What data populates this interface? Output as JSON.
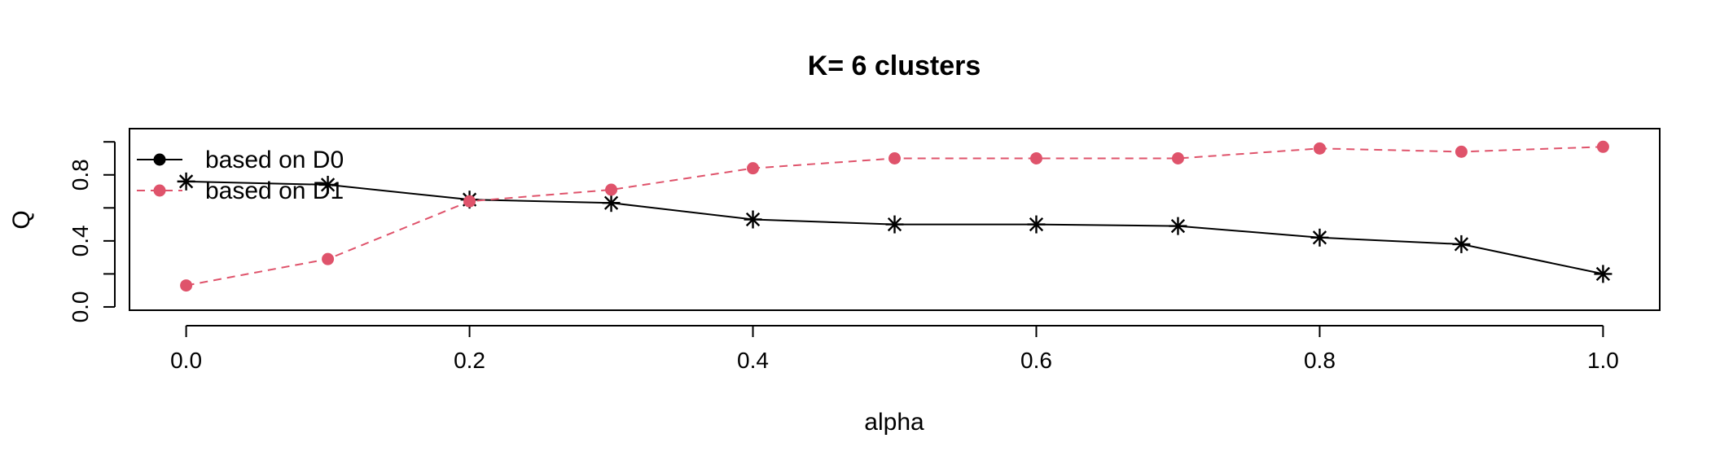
{
  "chart_data": {
    "type": "line",
    "title": "K= 6 clusters",
    "xlabel": "alpha",
    "ylabel": "Q",
    "x": [
      0.0,
      0.1,
      0.2,
      0.3,
      0.4,
      0.5,
      0.6,
      0.7,
      0.8,
      0.9,
      1.0
    ],
    "xlim": [
      -0.04,
      1.04
    ],
    "ylim": [
      -0.02,
      1.08
    ],
    "x_ticks": [
      "0.0",
      "0.2",
      "0.4",
      "0.6",
      "0.8",
      "1.0"
    ],
    "y_ticks": [
      "0.0",
      "0.4",
      "0.8"
    ],
    "grid": false,
    "legend_position": "top-left",
    "series": [
      {
        "name": "based on D0",
        "color": "#000000",
        "line_style": "solid",
        "marker": "asterisk",
        "values": [
          0.76,
          0.74,
          0.65,
          0.63,
          0.53,
          0.5,
          0.5,
          0.49,
          0.42,
          0.38,
          0.2
        ]
      },
      {
        "name": "based on D1",
        "color": "#DF536B",
        "line_style": "dashed",
        "marker": "circle",
        "values": [
          0.13,
          0.29,
          0.64,
          0.71,
          0.84,
          0.9,
          0.9,
          0.9,
          0.96,
          0.94,
          0.97
        ]
      }
    ]
  }
}
